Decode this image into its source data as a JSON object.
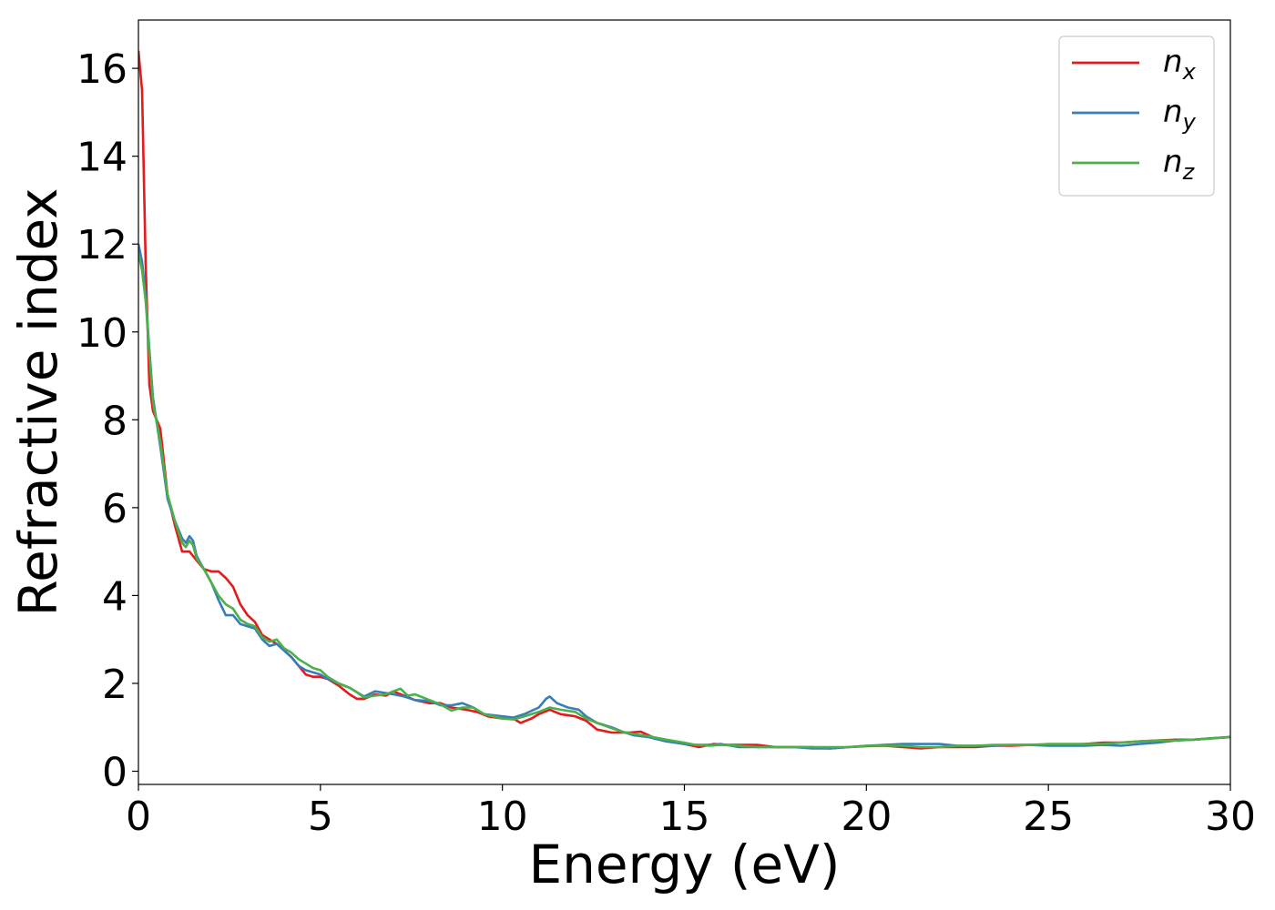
{
  "chart_data": {
    "type": "line",
    "xlabel": "Energy (eV)",
    "ylabel": "Refractive index",
    "xlim": [
      0,
      30
    ],
    "ylim": [
      -0.3,
      17.1
    ],
    "x_ticks": [
      "0",
      "5",
      "10",
      "15",
      "20",
      "25",
      "30"
    ],
    "y_ticks": [
      "0",
      "2",
      "4",
      "6",
      "8",
      "10",
      "12",
      "14",
      "16"
    ],
    "grid": false,
    "legend_position": "top-right",
    "series": [
      {
        "name": "n",
        "subscript": "x",
        "color": "#e41a1c",
        "points": [
          [
            0,
            16.4
          ],
          [
            0.1,
            15.5
          ],
          [
            0.2,
            11.5
          ],
          [
            0.3,
            8.8
          ],
          [
            0.4,
            8.2
          ],
          [
            0.6,
            7.8
          ],
          [
            0.8,
            6.3
          ],
          [
            1.0,
            5.6
          ],
          [
            1.2,
            5.0
          ],
          [
            1.4,
            5.0
          ],
          [
            1.6,
            4.8
          ],
          [
            1.8,
            4.6
          ],
          [
            2.0,
            4.55
          ],
          [
            2.2,
            4.55
          ],
          [
            2.4,
            4.4
          ],
          [
            2.6,
            4.2
          ],
          [
            2.8,
            3.8
          ],
          [
            3.0,
            3.55
          ],
          [
            3.2,
            3.4
          ],
          [
            3.4,
            3.1
          ],
          [
            3.6,
            3.0
          ],
          [
            3.8,
            2.9
          ],
          [
            4.0,
            2.75
          ],
          [
            4.2,
            2.6
          ],
          [
            4.4,
            2.4
          ],
          [
            4.6,
            2.2
          ],
          [
            4.8,
            2.15
          ],
          [
            5.0,
            2.15
          ],
          [
            5.2,
            2.1
          ],
          [
            5.5,
            1.95
          ],
          [
            5.8,
            1.75
          ],
          [
            6.0,
            1.65
          ],
          [
            6.2,
            1.65
          ],
          [
            6.5,
            1.75
          ],
          [
            6.8,
            1.72
          ],
          [
            7.0,
            1.82
          ],
          [
            7.3,
            1.72
          ],
          [
            7.6,
            1.62
          ],
          [
            8.0,
            1.55
          ],
          [
            8.3,
            1.55
          ],
          [
            8.6,
            1.45
          ],
          [
            9.0,
            1.4
          ],
          [
            9.3,
            1.35
          ],
          [
            9.6,
            1.25
          ],
          [
            10.0,
            1.2
          ],
          [
            10.3,
            1.2
          ],
          [
            10.5,
            1.1
          ],
          [
            10.8,
            1.2
          ],
          [
            11.0,
            1.3
          ],
          [
            11.3,
            1.4
          ],
          [
            11.6,
            1.3
          ],
          [
            12.0,
            1.25
          ],
          [
            12.3,
            1.15
          ],
          [
            12.6,
            0.95
          ],
          [
            13.0,
            0.88
          ],
          [
            13.5,
            0.88
          ],
          [
            13.8,
            0.9
          ],
          [
            14.2,
            0.75
          ],
          [
            14.5,
            0.7
          ],
          [
            15.0,
            0.62
          ],
          [
            15.4,
            0.55
          ],
          [
            15.8,
            0.62
          ],
          [
            16.2,
            0.6
          ],
          [
            16.6,
            0.6
          ],
          [
            17.0,
            0.6
          ],
          [
            17.5,
            0.55
          ],
          [
            18.0,
            0.55
          ],
          [
            18.5,
            0.55
          ],
          [
            19.0,
            0.52
          ],
          [
            19.5,
            0.55
          ],
          [
            20.0,
            0.57
          ],
          [
            20.5,
            0.58
          ],
          [
            21.0,
            0.55
          ],
          [
            21.5,
            0.52
          ],
          [
            22.0,
            0.55
          ],
          [
            22.5,
            0.55
          ],
          [
            23.0,
            0.55
          ],
          [
            23.5,
            0.58
          ],
          [
            24.0,
            0.58
          ],
          [
            24.5,
            0.6
          ],
          [
            25.0,
            0.6
          ],
          [
            25.5,
            0.6
          ],
          [
            26.0,
            0.62
          ],
          [
            26.5,
            0.65
          ],
          [
            27.0,
            0.65
          ],
          [
            27.5,
            0.68
          ],
          [
            28.0,
            0.7
          ],
          [
            28.5,
            0.72
          ],
          [
            29.0,
            0.72
          ],
          [
            29.5,
            0.75
          ],
          [
            30.0,
            0.78
          ]
        ]
      },
      {
        "name": "n",
        "subscript": "y",
        "color": "#377eb8",
        "points": [
          [
            0,
            12.0
          ],
          [
            0.1,
            11.6
          ],
          [
            0.2,
            10.8
          ],
          [
            0.3,
            9.6
          ],
          [
            0.4,
            8.5
          ],
          [
            0.6,
            7.4
          ],
          [
            0.8,
            6.2
          ],
          [
            1.0,
            5.7
          ],
          [
            1.2,
            5.3
          ],
          [
            1.3,
            5.2
          ],
          [
            1.4,
            5.35
          ],
          [
            1.5,
            5.25
          ],
          [
            1.6,
            4.9
          ],
          [
            1.8,
            4.6
          ],
          [
            2.0,
            4.3
          ],
          [
            2.2,
            3.9
          ],
          [
            2.4,
            3.55
          ],
          [
            2.6,
            3.55
          ],
          [
            2.8,
            3.35
          ],
          [
            3.0,
            3.3
          ],
          [
            3.2,
            3.25
          ],
          [
            3.4,
            3.0
          ],
          [
            3.6,
            2.85
          ],
          [
            3.8,
            2.9
          ],
          [
            4.0,
            2.75
          ],
          [
            4.2,
            2.6
          ],
          [
            4.4,
            2.4
          ],
          [
            4.6,
            2.3
          ],
          [
            4.8,
            2.25
          ],
          [
            5.0,
            2.2
          ],
          [
            5.2,
            2.1
          ],
          [
            5.5,
            2.0
          ],
          [
            5.8,
            1.9
          ],
          [
            6.0,
            1.8
          ],
          [
            6.2,
            1.7
          ],
          [
            6.5,
            1.82
          ],
          [
            6.8,
            1.78
          ],
          [
            7.0,
            1.75
          ],
          [
            7.3,
            1.7
          ],
          [
            7.6,
            1.62
          ],
          [
            8.0,
            1.6
          ],
          [
            8.3,
            1.5
          ],
          [
            8.6,
            1.5
          ],
          [
            8.9,
            1.55
          ],
          [
            9.2,
            1.45
          ],
          [
            9.5,
            1.3
          ],
          [
            10.0,
            1.25
          ],
          [
            10.3,
            1.22
          ],
          [
            10.6,
            1.3
          ],
          [
            11.0,
            1.45
          ],
          [
            11.2,
            1.65
          ],
          [
            11.3,
            1.7
          ],
          [
            11.5,
            1.55
          ],
          [
            11.8,
            1.45
          ],
          [
            12.1,
            1.4
          ],
          [
            12.3,
            1.25
          ],
          [
            12.6,
            1.1
          ],
          [
            13.0,
            1.0
          ],
          [
            13.3,
            0.9
          ],
          [
            13.6,
            0.82
          ],
          [
            14.0,
            0.78
          ],
          [
            14.5,
            0.68
          ],
          [
            15.0,
            0.62
          ],
          [
            15.3,
            0.6
          ],
          [
            15.7,
            0.6
          ],
          [
            16.0,
            0.62
          ],
          [
            16.5,
            0.55
          ],
          [
            17.0,
            0.55
          ],
          [
            17.5,
            0.55
          ],
          [
            18.0,
            0.55
          ],
          [
            18.5,
            0.52
          ],
          [
            19.0,
            0.52
          ],
          [
            19.5,
            0.55
          ],
          [
            20.0,
            0.58
          ],
          [
            20.5,
            0.6
          ],
          [
            21.0,
            0.62
          ],
          [
            21.5,
            0.62
          ],
          [
            22.0,
            0.62
          ],
          [
            22.5,
            0.58
          ],
          [
            23.0,
            0.58
          ],
          [
            23.5,
            0.58
          ],
          [
            24.0,
            0.6
          ],
          [
            24.5,
            0.6
          ],
          [
            25.0,
            0.58
          ],
          [
            25.5,
            0.58
          ],
          [
            26.0,
            0.58
          ],
          [
            26.5,
            0.6
          ],
          [
            27.0,
            0.58
          ],
          [
            27.5,
            0.62
          ],
          [
            28.0,
            0.65
          ],
          [
            28.5,
            0.7
          ],
          [
            29.0,
            0.72
          ],
          [
            29.5,
            0.75
          ],
          [
            30.0,
            0.78
          ]
        ]
      },
      {
        "name": "n",
        "subscript": "z",
        "color": "#4daf4a",
        "points": [
          [
            0,
            11.8
          ],
          [
            0.1,
            11.4
          ],
          [
            0.2,
            10.7
          ],
          [
            0.3,
            9.5
          ],
          [
            0.4,
            8.4
          ],
          [
            0.6,
            7.5
          ],
          [
            0.8,
            6.3
          ],
          [
            1.0,
            5.7
          ],
          [
            1.2,
            5.2
          ],
          [
            1.3,
            5.1
          ],
          [
            1.4,
            5.25
          ],
          [
            1.5,
            5.15
          ],
          [
            1.6,
            4.85
          ],
          [
            1.8,
            4.6
          ],
          [
            2.0,
            4.3
          ],
          [
            2.2,
            4.0
          ],
          [
            2.4,
            3.8
          ],
          [
            2.6,
            3.7
          ],
          [
            2.8,
            3.45
          ],
          [
            3.0,
            3.35
          ],
          [
            3.2,
            3.3
          ],
          [
            3.4,
            3.05
          ],
          [
            3.6,
            2.95
          ],
          [
            3.8,
            3.0
          ],
          [
            4.0,
            2.8
          ],
          [
            4.2,
            2.7
          ],
          [
            4.4,
            2.55
          ],
          [
            4.6,
            2.45
          ],
          [
            4.8,
            2.35
          ],
          [
            5.0,
            2.3
          ],
          [
            5.2,
            2.15
          ],
          [
            5.5,
            2.0
          ],
          [
            5.8,
            1.9
          ],
          [
            6.0,
            1.8
          ],
          [
            6.2,
            1.68
          ],
          [
            6.5,
            1.72
          ],
          [
            6.8,
            1.75
          ],
          [
            7.0,
            1.82
          ],
          [
            7.2,
            1.88
          ],
          [
            7.4,
            1.72
          ],
          [
            7.6,
            1.75
          ],
          [
            8.0,
            1.62
          ],
          [
            8.3,
            1.52
          ],
          [
            8.6,
            1.38
          ],
          [
            8.9,
            1.45
          ],
          [
            9.2,
            1.45
          ],
          [
            9.5,
            1.3
          ],
          [
            10.0,
            1.2
          ],
          [
            10.3,
            1.18
          ],
          [
            10.6,
            1.25
          ],
          [
            11.0,
            1.35
          ],
          [
            11.3,
            1.45
          ],
          [
            11.6,
            1.4
          ],
          [
            12.0,
            1.35
          ],
          [
            12.3,
            1.2
          ],
          [
            12.6,
            1.1
          ],
          [
            13.0,
            0.98
          ],
          [
            13.3,
            0.9
          ],
          [
            13.6,
            0.85
          ],
          [
            14.0,
            0.8
          ],
          [
            14.5,
            0.72
          ],
          [
            15.0,
            0.65
          ],
          [
            15.3,
            0.6
          ],
          [
            15.7,
            0.58
          ],
          [
            16.0,
            0.6
          ],
          [
            16.5,
            0.58
          ],
          [
            17.0,
            0.55
          ],
          [
            17.5,
            0.55
          ],
          [
            18.0,
            0.55
          ],
          [
            18.5,
            0.55
          ],
          [
            19.0,
            0.55
          ],
          [
            19.5,
            0.55
          ],
          [
            20.0,
            0.58
          ],
          [
            20.5,
            0.58
          ],
          [
            21.0,
            0.58
          ],
          [
            21.5,
            0.55
          ],
          [
            22.0,
            0.55
          ],
          [
            22.5,
            0.58
          ],
          [
            23.0,
            0.58
          ],
          [
            23.5,
            0.6
          ],
          [
            24.0,
            0.6
          ],
          [
            24.5,
            0.6
          ],
          [
            25.0,
            0.62
          ],
          [
            25.5,
            0.62
          ],
          [
            26.0,
            0.62
          ],
          [
            26.5,
            0.62
          ],
          [
            27.0,
            0.65
          ],
          [
            27.5,
            0.68
          ],
          [
            28.0,
            0.7
          ],
          [
            28.5,
            0.7
          ],
          [
            29.0,
            0.72
          ],
          [
            29.5,
            0.75
          ],
          [
            30.0,
            0.78
          ]
        ]
      }
    ]
  }
}
